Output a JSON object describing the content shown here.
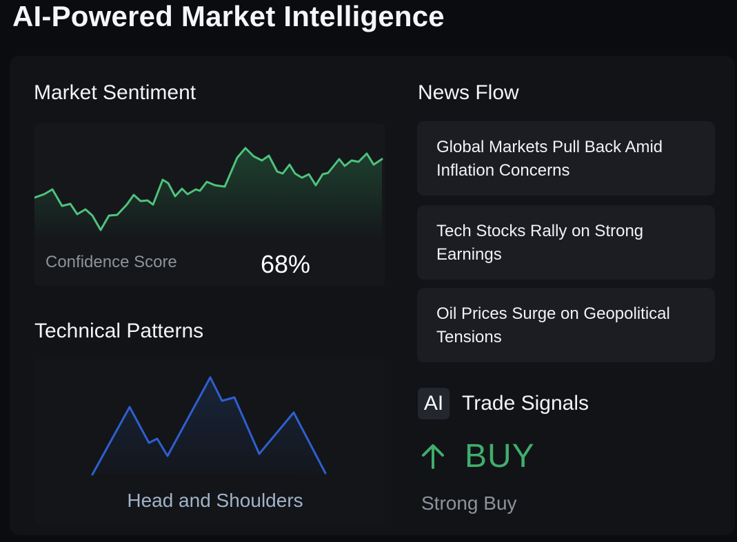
{
  "app": {
    "title": "AI-Powered Market Intelligence"
  },
  "sentiment": {
    "title": "Market Sentiment",
    "confidence_label": "Confidence Score",
    "confidence_value": "68%",
    "confidence_percent": 68,
    "line_color": "#4fc37c"
  },
  "patterns": {
    "title": "Technical Patterns",
    "pattern_name": "Head and Shoulders",
    "line_color": "#2f5fd0"
  },
  "news": {
    "title": "News Flow",
    "items": [
      {
        "headline": "Global Markets Pull Back Amid Inflation Concerns"
      },
      {
        "headline": "Tech Stocks Rally on Strong Earnings"
      },
      {
        "headline": "Oil Prices Surge on Geopolitical Tensions"
      }
    ]
  },
  "signals": {
    "badge": "AI",
    "title": "Trade Signals",
    "direction_icon": "arrow-up-icon",
    "value": "BUY",
    "strength": "Strong Buy",
    "accent_color": "#3fae6c"
  }
}
